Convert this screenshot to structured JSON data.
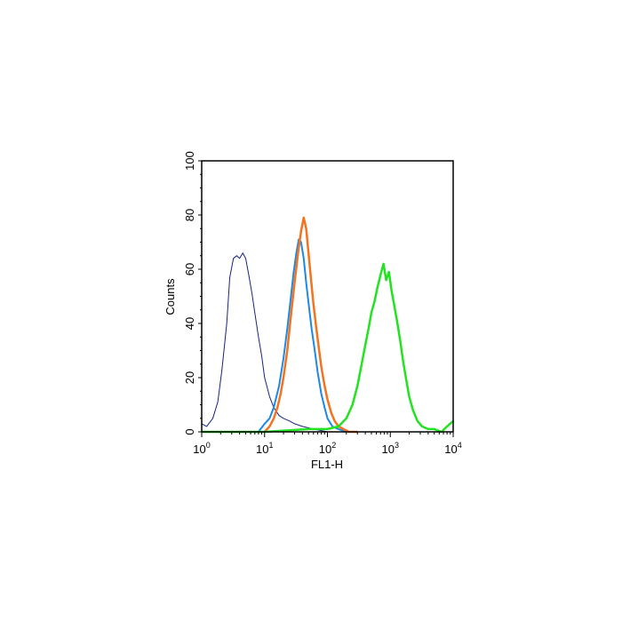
{
  "chart_data": {
    "type": "line",
    "title": "",
    "xlabel": "FL1-H",
    "ylabel": "Counts",
    "xscale": "log",
    "xlim": [
      1,
      10000
    ],
    "ylim": [
      0,
      100
    ],
    "x_ticks": [
      {
        "base": "10",
        "exp": "0"
      },
      {
        "base": "10",
        "exp": "1"
      },
      {
        "base": "10",
        "exp": "2"
      },
      {
        "base": "10",
        "exp": "3"
      },
      {
        "base": "10",
        "exp": "4"
      }
    ],
    "y_ticks": [
      "0",
      "20",
      "40",
      "60",
      "80",
      "100"
    ],
    "y_tick_values": [
      0,
      20,
      40,
      60,
      80,
      100
    ],
    "grid": false,
    "legend": "none",
    "series": [
      {
        "color": "#1a237e",
        "line_width": 1,
        "x": [
          1,
          1.2,
          1.5,
          1.8,
          2.1,
          2.5,
          2.8,
          3.2,
          3.6,
          4.0,
          4.5,
          5.0,
          5.6,
          6.3,
          7.1,
          8.0,
          9.0,
          10,
          12,
          14,
          17,
          20,
          25,
          30,
          40,
          60,
          100
        ],
        "y": [
          3,
          2,
          5,
          11,
          23,
          40,
          57,
          64,
          65,
          64,
          66,
          64,
          58,
          51,
          43,
          35,
          28,
          20,
          13,
          9,
          6,
          5,
          4,
          3,
          2,
          1,
          0
        ]
      },
      {
        "color": "#1e88e5",
        "line_width": 2,
        "x": [
          8,
          10,
          12,
          14,
          17,
          20,
          23,
          26,
          29,
          32,
          35,
          38,
          42,
          46,
          51,
          56,
          62,
          70,
          80,
          90,
          100,
          120,
          150,
          200
        ],
        "y": [
          0,
          3,
          5,
          9,
          17,
          27,
          38,
          49,
          59,
          66,
          71,
          70,
          64,
          55,
          46,
          38,
          31,
          22,
          14,
          9,
          5,
          2,
          1,
          0
        ]
      },
      {
        "color": "#f4731f",
        "line_width": 2.5,
        "x": [
          10,
          12,
          14,
          16,
          18,
          20,
          23,
          26,
          30,
          34,
          38,
          42,
          46,
          50,
          55,
          60,
          66,
          73,
          80,
          90,
          100,
          115,
          130,
          150,
          180,
          220,
          300
        ],
        "y": [
          0,
          2,
          5,
          9,
          14,
          20,
          30,
          42,
          55,
          66,
          74,
          79,
          75,
          66,
          56,
          47,
          39,
          31,
          24,
          17,
          12,
          7,
          4,
          2,
          1,
          0,
          0
        ]
      },
      {
        "color": "#22e222",
        "line_width": 2.5,
        "x": [
          1,
          10,
          50,
          100,
          150,
          200,
          250,
          300,
          350,
          400,
          450,
          500,
          560,
          620,
          700,
          780,
          860,
          950,
          1050,
          1150,
          1300,
          1450,
          1600,
          1800,
          2000,
          2300,
          2700,
          3200,
          4000,
          5000,
          6500,
          8000,
          10000
        ],
        "y": [
          0,
          0,
          1,
          1,
          2,
          5,
          10,
          17,
          25,
          32,
          38,
          44,
          48,
          53,
          58,
          62,
          56,
          59,
          52,
          47,
          40,
          33,
          26,
          19,
          13,
          8,
          4,
          2,
          1,
          1,
          0,
          2,
          4
        ]
      }
    ]
  }
}
